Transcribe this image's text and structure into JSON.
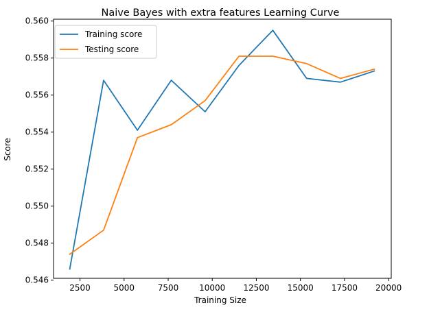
{
  "chart_data": {
    "type": "line",
    "title": "Naive Bayes with extra features Learning Curve",
    "xlabel": "Training Size",
    "ylabel": "Score",
    "x": [
      1919,
      3838,
      5757,
      7676,
      9595,
      11514,
      13433,
      15352,
      17271,
      19190
    ],
    "series": [
      {
        "name": "Training score",
        "color": "#1f77b4",
        "values": [
          0.5466,
          0.5568,
          0.5541,
          0.5568,
          0.5551,
          0.5576,
          0.5595,
          0.5569,
          0.5567,
          0.5573
        ]
      },
      {
        "name": "Testing score",
        "color": "#ff7f0e",
        "values": [
          0.5474,
          0.5487,
          0.5537,
          0.5544,
          0.5557,
          0.5581,
          0.5581,
          0.5577,
          0.5569,
          0.5574
        ]
      }
    ],
    "xlim": [
      1000,
      20150
    ],
    "ylim": [
      0.5461,
      0.5601
    ],
    "xticks": [
      2500,
      5000,
      7500,
      10000,
      12500,
      15000,
      17500,
      20000
    ],
    "yticks": [
      0.546,
      0.548,
      0.55,
      0.552,
      0.554,
      0.556,
      0.558,
      0.56
    ],
    "xtick_labels": [
      "2500",
      "5000",
      "7500",
      "10000",
      "12500",
      "15000",
      "17500",
      "20000"
    ],
    "ytick_labels": [
      "0.546",
      "0.548",
      "0.550",
      "0.552",
      "0.554",
      "0.556",
      "0.558",
      "0.560"
    ],
    "grid": false,
    "legend_position": "top-left"
  }
}
